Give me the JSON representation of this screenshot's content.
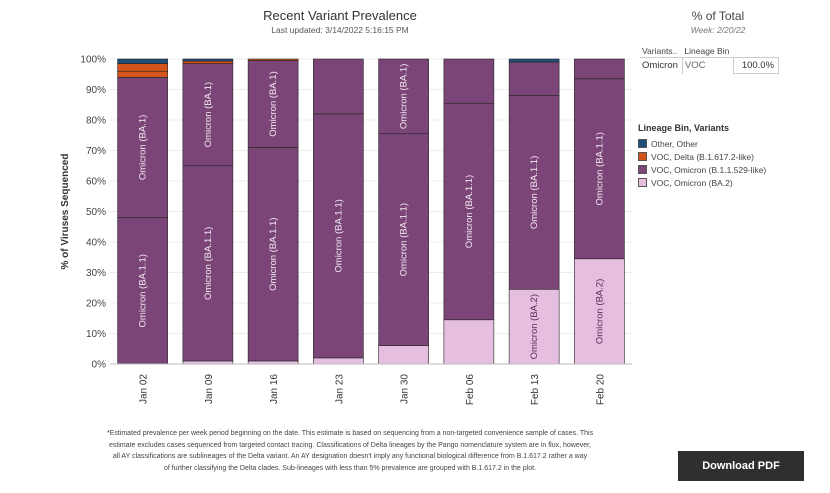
{
  "header": {
    "title": "Recent Variant Prevalence",
    "updated": "Last updated: 3/14/2022 5:16:15 PM"
  },
  "percent_total": {
    "title": "% of Total",
    "week": "Week: 2/20/22",
    "col_variants": "Variants..",
    "col_bin": "Lineage Bin",
    "row": {
      "variant": "Omicron",
      "bin": "VOC",
      "value": "100.0%"
    }
  },
  "legend": {
    "title": "Lineage Bin, Variants",
    "items": [
      {
        "label": "Other, Other",
        "color": "#1f4e79"
      },
      {
        "label": "VOC, Delta (B.1.617.2-like)",
        "color": "#d4541c"
      },
      {
        "label": "VOC, Omicron (B.1.1.529-like)",
        "color": "#7b4677"
      },
      {
        "label": "VOC, Omicron (BA.2)",
        "color": "#e6bfe0"
      }
    ]
  },
  "chart_data": {
    "type": "bar",
    "stacked": true,
    "ylabel": "% of Viruses Sequenced",
    "ylim": [
      0,
      100
    ],
    "yticks": [
      "0%",
      "10%",
      "20%",
      "30%",
      "40%",
      "50%",
      "60%",
      "70%",
      "80%",
      "90%",
      "100%"
    ],
    "categories": [
      "Jan 02",
      "Jan 09",
      "Jan 16",
      "Jan 23",
      "Jan 30",
      "Feb 06",
      "Feb 13",
      "Feb 20"
    ],
    "segments": [
      [
        {
          "series": "BA.1.1",
          "value": 48,
          "color": "#7b4677",
          "label": "Omicron (BA.1.1)"
        },
        {
          "series": "BA.1",
          "value": 46,
          "color": "#7b4677",
          "label": "Omicron (BA.1)"
        },
        {
          "series": "Delta",
          "value": 2,
          "color": "#d4541c"
        },
        {
          "series": "Delta",
          "value": 2.5,
          "color": "#d4541c"
        },
        {
          "series": "Other",
          "value": 1.5,
          "color": "#1f4e79"
        }
      ],
      [
        {
          "series": "BA.2",
          "value": 1,
          "color": "#e6bfe0"
        },
        {
          "series": "BA.1.1",
          "value": 64,
          "color": "#7b4677",
          "label": "Omicron (BA.1.1)"
        },
        {
          "series": "BA.1",
          "value": 33.5,
          "color": "#7b4677",
          "label": "Omicron (BA.1)"
        },
        {
          "series": "Delta",
          "value": 0.8,
          "color": "#d4541c"
        },
        {
          "series": "Other",
          "value": 0.7,
          "color": "#1f4e79"
        }
      ],
      [
        {
          "series": "BA.2",
          "value": 1,
          "color": "#e6bfe0"
        },
        {
          "series": "BA.1.1",
          "value": 70,
          "color": "#7b4677",
          "label": "Omicron (BA.1.1)"
        },
        {
          "series": "BA.1",
          "value": 28.5,
          "color": "#7b4677",
          "label": "Omicron (BA.1)"
        },
        {
          "series": "Delta",
          "value": 0.5,
          "color": "#d4541c"
        }
      ],
      [
        {
          "series": "BA.2",
          "value": 2,
          "color": "#e6bfe0"
        },
        {
          "series": "BA.1.1",
          "value": 80,
          "color": "#7b4677",
          "label": "Omicron (BA.1.1)"
        },
        {
          "series": "BA.1",
          "value": 18,
          "color": "#7b4677"
        }
      ],
      [
        {
          "series": "BA.2",
          "value": 6,
          "color": "#e6bfe0"
        },
        {
          "series": "BA.1.1",
          "value": 69.5,
          "color": "#7b4677",
          "label": "Omicron (BA.1.1)"
        },
        {
          "series": "BA.1",
          "value": 24.5,
          "color": "#7b4677",
          "label": "Omicron (BA.1)"
        }
      ],
      [
        {
          "series": "BA.2",
          "value": 14.5,
          "color": "#e6bfe0"
        },
        {
          "series": "BA.1.1",
          "value": 71,
          "color": "#7b4677",
          "label": "Omicron (BA.1.1)"
        },
        {
          "series": "BA.1",
          "value": 14.5,
          "color": "#7b4677"
        }
      ],
      [
        {
          "series": "BA.2",
          "value": 24.5,
          "color": "#e6bfe0",
          "label": "Omicron (BA.2)"
        },
        {
          "series": "BA.1.1",
          "value": 63.5,
          "color": "#7b4677",
          "label": "Omicron (BA.1.1)"
        },
        {
          "series": "BA.1",
          "value": 11,
          "color": "#7b4677"
        },
        {
          "series": "Other",
          "value": 1,
          "color": "#1f4e79"
        }
      ],
      [
        {
          "series": "BA.2",
          "value": 34.5,
          "color": "#e6bfe0",
          "label": "Omicron (BA.2)"
        },
        {
          "series": "BA.1.1",
          "value": 59,
          "color": "#7b4677",
          "label": "Omicron (BA.1.1)"
        },
        {
          "series": "BA.1",
          "value": 6.5,
          "color": "#7b4677"
        }
      ]
    ]
  },
  "footnote": [
    "*Estimated prevalence per week period beginning on the date. This estimate is based on sequencing from a non-targeted convenience sample of cases. This",
    "estimate excludes cases sequenced from targeted contact tracing. Classifications of Delta lineages by the Pango nomenclature system are in flux, however,",
    "all AY classifications are sublineages of the Delta variant.  An AY designation  doesn't imply any functional biological difference from B.1.617.2 rather a way",
    "of further classifying the Delta clades. Sub-lineages with less than 5% prevalence are grouped with B.1.617.2 in the plot."
  ],
  "download": {
    "label": "Download PDF"
  }
}
